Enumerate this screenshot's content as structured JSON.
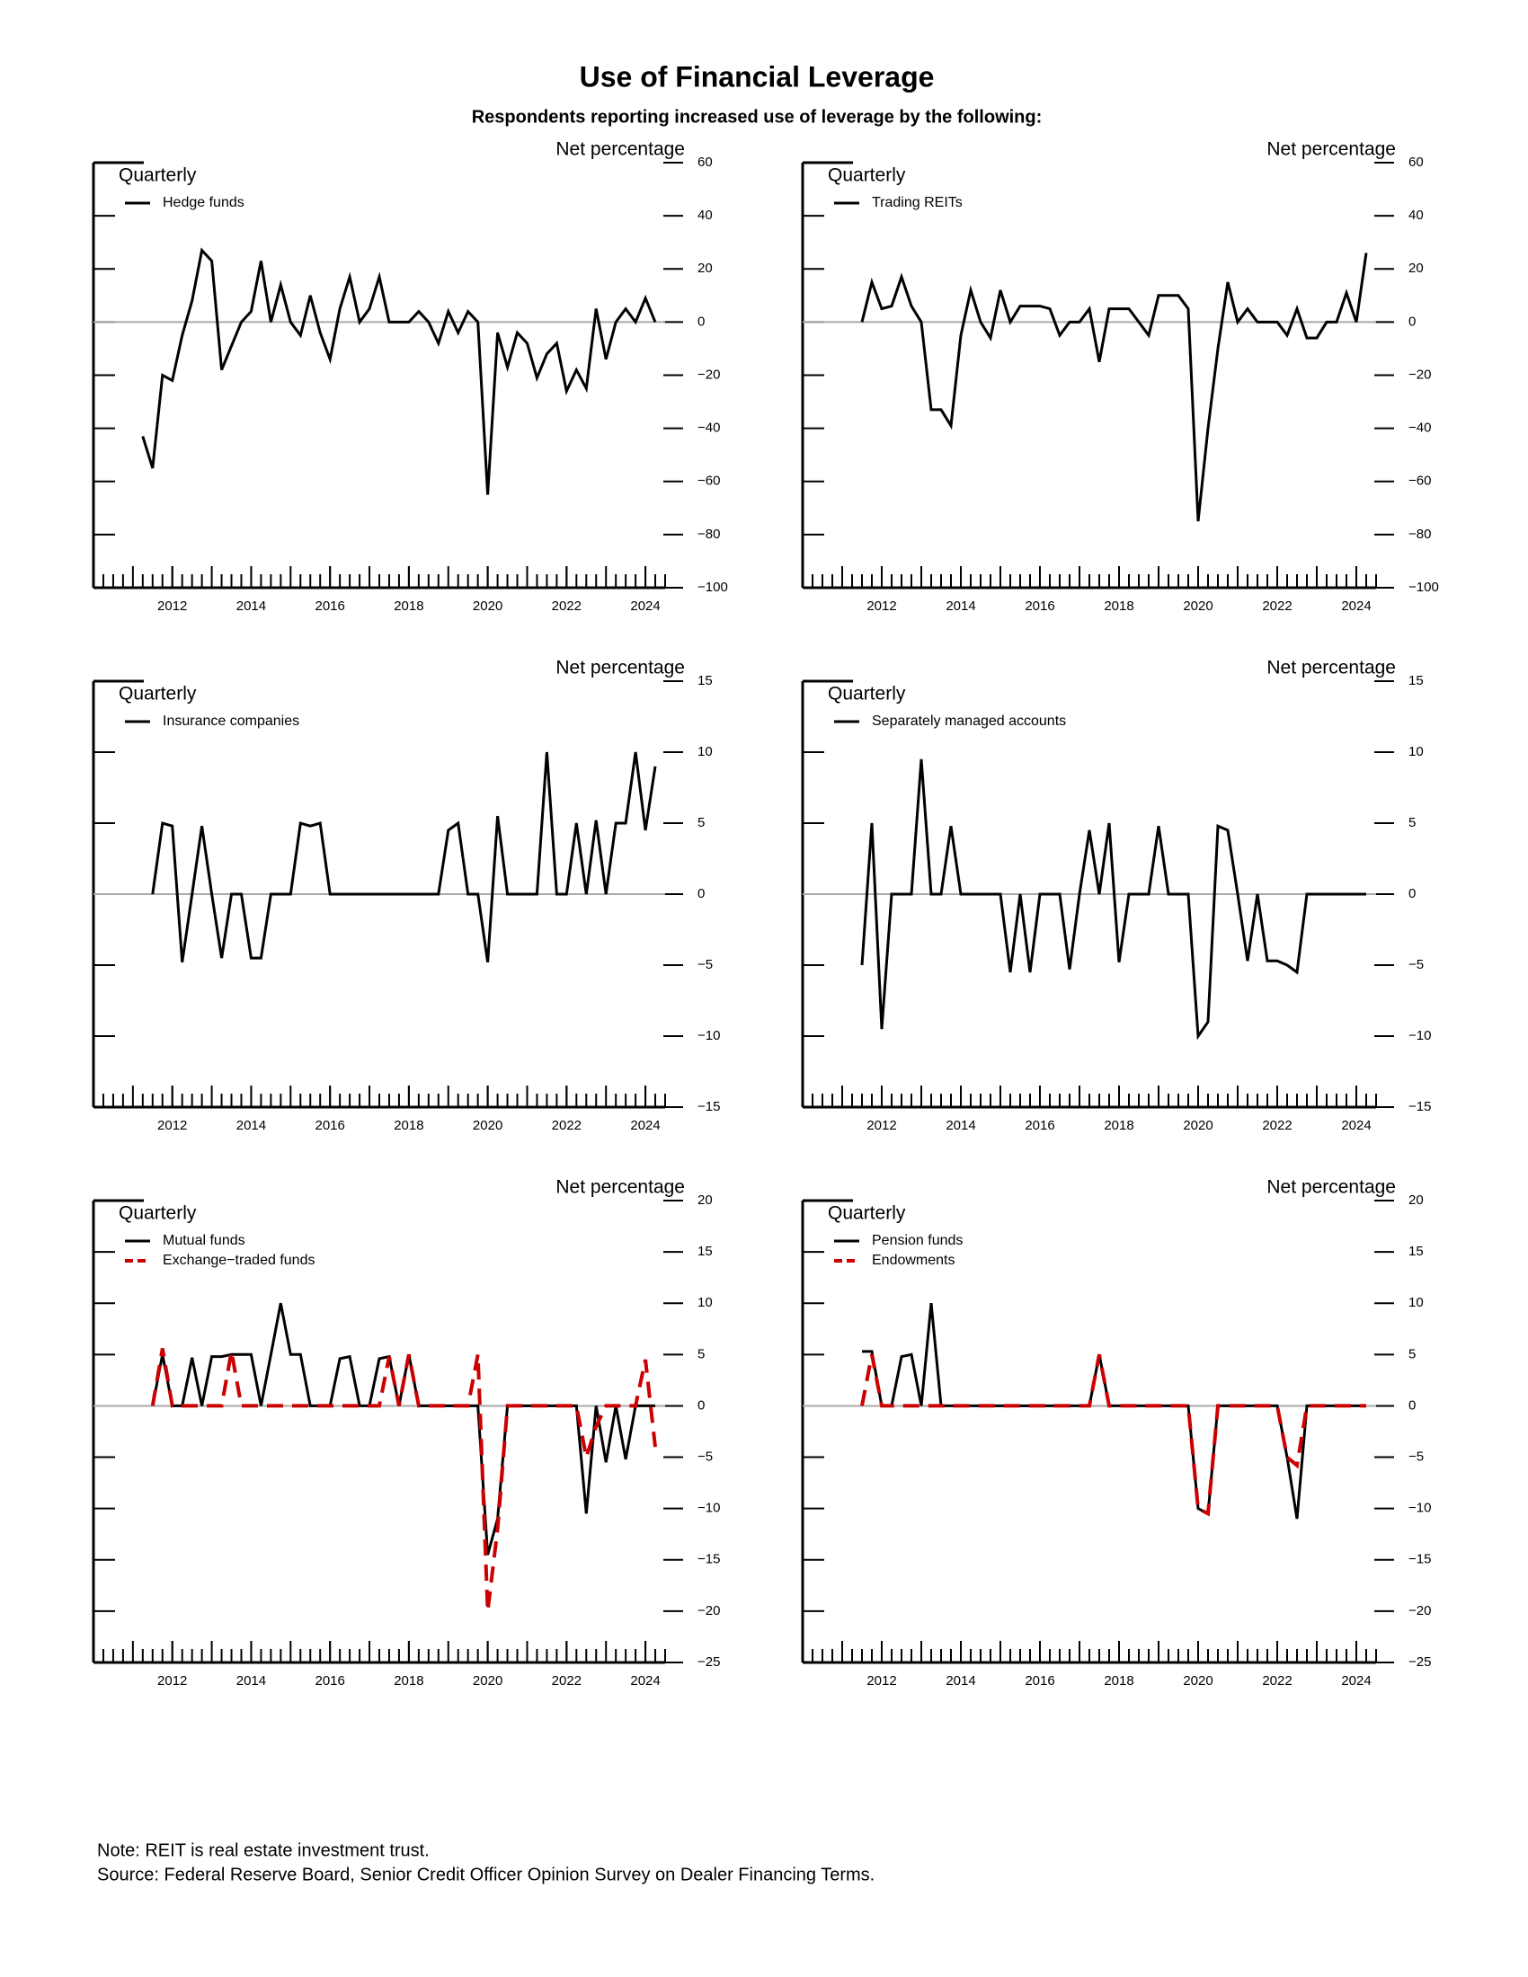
{
  "title": "Use of Financial Leverage",
  "subtitle": "Respondents reporting increased use of leverage by the following:",
  "notes": [
    "Note:  REIT is real estate investment trust.",
    "Source:  Federal Reserve Board, Senior Credit Officer Opinion Survey on Dealer Financing Terms."
  ],
  "chart_data": [
    {
      "type": "line",
      "y_label": "Net percentage",
      "frequency": "Quarterly",
      "legend": "upper left",
      "xlim": [
        2010,
        2024.5
      ],
      "xticks": [
        2012,
        2014,
        2016,
        2018,
        2020,
        2022,
        2024
      ],
      "ylim": [
        -100,
        60
      ],
      "yticks": [
        {
          "value": -100,
          "label": "−100"
        },
        {
          "value": -80,
          "label": "−80"
        },
        {
          "value": -60,
          "label": "−60"
        },
        {
          "value": -40,
          "label": "−40"
        },
        {
          "value": -20,
          "label": "−20"
        },
        0,
        20,
        40,
        60
      ],
      "x": [
        2011.25,
        2011.5,
        2011.75,
        2012,
        2012.25,
        2012.5,
        2012.75,
        2013,
        2013.25,
        2013.5,
        2013.75,
        2014,
        2014.25,
        2014.5,
        2014.75,
        2015,
        2015.25,
        2015.5,
        2015.75,
        2016,
        2016.25,
        2016.5,
        2016.75,
        2017,
        2017.25,
        2017.5,
        2017.75,
        2018,
        2018.25,
        2018.5,
        2018.75,
        2019,
        2019.25,
        2019.5,
        2019.75,
        2020,
        2020.25,
        2020.5,
        2020.75,
        2021,
        2021.25,
        2021.5,
        2021.75,
        2022,
        2022.25,
        2022.5,
        2022.75,
        2023,
        2023.25,
        2023.5,
        2023.75,
        2024,
        2024.25
      ],
      "series": [
        {
          "name": "Hedge funds",
          "color": "#000000",
          "dashed": false,
          "values": [
            -43,
            -55,
            -20,
            -22,
            -5,
            8,
            27,
            23,
            -18,
            -9,
            0,
            4,
            23,
            0,
            14,
            0,
            -5,
            10,
            -4,
            -14,
            5,
            17,
            0,
            5,
            17,
            0,
            0,
            0,
            4,
            0,
            -8,
            4,
            -4,
            4,
            0,
            -65,
            -4,
            -17,
            -4,
            -8,
            -21,
            -12,
            -8,
            -26,
            -18,
            -25,
            5,
            -14,
            0,
            5,
            0,
            9,
            0
          ]
        }
      ]
    },
    {
      "type": "line",
      "y_label": "Net percentage",
      "frequency": "Quarterly",
      "legend": "upper left",
      "xlim": [
        2010,
        2024.5
      ],
      "xticks": [
        2012,
        2014,
        2016,
        2018,
        2020,
        2022,
        2024
      ],
      "ylim": [
        -100,
        60
      ],
      "yticks": [
        {
          "value": -100,
          "label": "−100"
        },
        {
          "value": -80,
          "label": "−80"
        },
        {
          "value": -60,
          "label": "−60"
        },
        {
          "value": -40,
          "label": "−40"
        },
        {
          "value": -20,
          "label": "−20"
        },
        0,
        20,
        40,
        60
      ],
      "x": [
        2011.5,
        2011.75,
        2012,
        2012.25,
        2012.5,
        2012.75,
        2013,
        2013.25,
        2013.5,
        2013.75,
        2014,
        2014.25,
        2014.5,
        2014.75,
        2015,
        2015.25,
        2015.5,
        2015.75,
        2016,
        2016.25,
        2016.5,
        2016.75,
        2017,
        2017.25,
        2017.5,
        2017.75,
        2018,
        2018.25,
        2018.5,
        2018.75,
        2019,
        2019.25,
        2019.5,
        2019.75,
        2020,
        2020.25,
        2020.5,
        2020.75,
        2021,
        2021.25,
        2021.5,
        2021.75,
        2022,
        2022.25,
        2022.5,
        2022.75,
        2023,
        2023.25,
        2023.5,
        2023.75,
        2024,
        2024.25
      ],
      "series": [
        {
          "name": "Trading REITs",
          "color": "#000000",
          "dashed": false,
          "values": [
            0,
            15,
            5,
            6,
            17,
            6,
            0,
            -33,
            -33,
            -39,
            -5,
            12,
            0,
            -6,
            12,
            0,
            6,
            6,
            6,
            5,
            -5,
            0,
            0,
            5,
            -15,
            5,
            5,
            5,
            0,
            -5,
            10,
            10,
            10,
            5,
            -75,
            -40,
            -10,
            15,
            0,
            5,
            0,
            0,
            0,
            -5,
            5,
            -6,
            -6,
            0,
            0,
            11,
            0,
            26
          ]
        }
      ]
    },
    {
      "type": "line",
      "y_label": "Net percentage",
      "frequency": "Quarterly",
      "legend": "upper left",
      "xlim": [
        2010,
        2024.5
      ],
      "xticks": [
        2012,
        2014,
        2016,
        2018,
        2020,
        2022,
        2024
      ],
      "ylim": [
        -15,
        15
      ],
      "yticks": [
        {
          "value": -15,
          "label": "−15"
        },
        {
          "value": -10,
          "label": "−10"
        },
        {
          "value": -5,
          "label": "−5"
        },
        0,
        5,
        10,
        15
      ],
      "x": [
        2011.5,
        2011.75,
        2012,
        2012.25,
        2012.5,
        2012.75,
        2013,
        2013.25,
        2013.5,
        2013.75,
        2014,
        2014.25,
        2014.5,
        2014.75,
        2015,
        2015.25,
        2015.5,
        2015.75,
        2016,
        2016.25,
        2016.5,
        2016.75,
        2017,
        2017.25,
        2017.5,
        2017.75,
        2018,
        2018.25,
        2018.5,
        2018.75,
        2019,
        2019.25,
        2019.5,
        2019.75,
        2020,
        2020.25,
        2020.5,
        2020.75,
        2021,
        2021.25,
        2021.5,
        2021.75,
        2022,
        2022.25,
        2022.5,
        2022.75,
        2023,
        2023.25,
        2023.5,
        2023.75,
        2024,
        2024.25
      ],
      "series": [
        {
          "name": "Insurance companies",
          "color": "#000000",
          "dashed": false,
          "values": [
            0,
            5,
            4.8,
            -4.8,
            0,
            4.8,
            0,
            -4.5,
            0,
            0,
            -4.5,
            -4.5,
            0,
            0,
            0,
            5,
            4.8,
            5,
            0,
            0,
            0,
            0,
            0,
            0,
            0,
            0,
            0,
            0,
            0,
            0,
            4.5,
            5,
            0,
            0,
            -4.8,
            5.5,
            0,
            0,
            0,
            0,
            10,
            0,
            0,
            5,
            0,
            5.2,
            0,
            5,
            5,
            10,
            4.5,
            9
          ]
        }
      ]
    },
    {
      "type": "line",
      "y_label": "Net percentage",
      "frequency": "Quarterly",
      "legend": "upper left",
      "xlim": [
        2010,
        2024.5
      ],
      "xticks": [
        2012,
        2014,
        2016,
        2018,
        2020,
        2022,
        2024
      ],
      "ylim": [
        -15,
        15
      ],
      "yticks": [
        {
          "value": -15,
          "label": "−15"
        },
        {
          "value": -10,
          "label": "−10"
        },
        {
          "value": -5,
          "label": "−5"
        },
        0,
        5,
        10,
        15
      ],
      "x": [
        2011.5,
        2011.75,
        2012,
        2012.25,
        2012.5,
        2012.75,
        2013,
        2013.25,
        2013.5,
        2013.75,
        2014,
        2014.25,
        2014.5,
        2014.75,
        2015,
        2015.25,
        2015.5,
        2015.75,
        2016,
        2016.25,
        2016.5,
        2016.75,
        2017,
        2017.25,
        2017.5,
        2017.75,
        2018,
        2018.25,
        2018.5,
        2018.75,
        2019,
        2019.25,
        2019.5,
        2019.75,
        2020,
        2020.25,
        2020.5,
        2020.75,
        2021,
        2021.25,
        2021.5,
        2021.75,
        2022,
        2022.25,
        2022.5,
        2022.75,
        2023,
        2023.25,
        2023.5,
        2023.75,
        2024,
        2024.25
      ],
      "series": [
        {
          "name": "Separately managed accounts",
          "color": "#000000",
          "dashed": false,
          "values": [
            -5,
            5,
            -9.5,
            0,
            0,
            0,
            9.5,
            0,
            0,
            4.8,
            0,
            0,
            0,
            0,
            0,
            -5.5,
            0,
            -5.5,
            0,
            0,
            0,
            -5.3,
            0,
            4.5,
            0,
            5,
            -4.8,
            0,
            0,
            0,
            4.8,
            0,
            0,
            0,
            -10,
            -9,
            4.8,
            4.5,
            0,
            -4.7,
            0,
            -4.7,
            -4.7,
            -5,
            -5.5,
            0,
            0,
            0,
            0,
            0,
            0,
            0
          ]
        }
      ]
    },
    {
      "type": "line",
      "y_label": "Net percentage",
      "frequency": "Quarterly",
      "legend": "upper left",
      "xlim": [
        2010,
        2024.5
      ],
      "xticks": [
        2012,
        2014,
        2016,
        2018,
        2020,
        2022,
        2024
      ],
      "ylim": [
        -25,
        20
      ],
      "yticks": [
        {
          "value": -25,
          "label": "−25"
        },
        {
          "value": -20,
          "label": "−20"
        },
        {
          "value": -15,
          "label": "−15"
        },
        {
          "value": -10,
          "label": "−10"
        },
        {
          "value": -5,
          "label": "−5"
        },
        0,
        5,
        10,
        15,
        20
      ],
      "x": [
        2011.5,
        2011.75,
        2012,
        2012.25,
        2012.5,
        2012.75,
        2013,
        2013.25,
        2013.5,
        2013.75,
        2014,
        2014.25,
        2014.5,
        2014.75,
        2015,
        2015.25,
        2015.5,
        2015.75,
        2016,
        2016.25,
        2016.5,
        2016.75,
        2017,
        2017.25,
        2017.5,
        2017.75,
        2018,
        2018.25,
        2018.5,
        2018.75,
        2019,
        2019.25,
        2019.5,
        2019.75,
        2020,
        2020.25,
        2020.5,
        2020.75,
        2021,
        2021.25,
        2021.5,
        2021.75,
        2022,
        2022.25,
        2022.5,
        2022.75,
        2023,
        2023.25,
        2023.5,
        2023.75,
        2024,
        2024.25
      ],
      "series": [
        {
          "name": "Mutual funds",
          "color": "#000000",
          "dashed": false,
          "values": [
            0,
            5,
            0,
            0,
            4.7,
            0,
            4.8,
            4.8,
            5,
            5,
            5,
            0,
            5,
            10,
            5,
            5,
            0,
            0,
            0,
            4.6,
            4.8,
            0,
            0,
            4.6,
            4.8,
            0,
            5,
            0,
            0,
            0,
            0,
            0,
            0,
            0,
            -14.5,
            -11,
            0,
            0,
            0,
            0,
            0,
            0,
            0,
            0,
            -10.5,
            0,
            -5.5,
            0,
            -5.2,
            0,
            0,
            0
          ]
        },
        {
          "name": "Exchange−traded funds",
          "color": "#cc0000",
          "dashed": true,
          "values": [
            0,
            5.6,
            0,
            0,
            0,
            0,
            0,
            0,
            5.3,
            0,
            0,
            0,
            0,
            0,
            0,
            0,
            0,
            0,
            0,
            0,
            0,
            0,
            0,
            0,
            4.8,
            0,
            5,
            0,
            0,
            0,
            0,
            0,
            0,
            5,
            -20,
            -12,
            0,
            0,
            0,
            0,
            0,
            0,
            0,
            0,
            -5,
            -2,
            0,
            0,
            0,
            0,
            4.5,
            -4
          ]
        }
      ]
    },
    {
      "type": "line",
      "y_label": "Net percentage",
      "frequency": "Quarterly",
      "legend": "upper left",
      "xlim": [
        2010,
        2024.5
      ],
      "xticks": [
        2012,
        2014,
        2016,
        2018,
        2020,
        2022,
        2024
      ],
      "ylim": [
        -25,
        20
      ],
      "yticks": [
        {
          "value": -25,
          "label": "−25"
        },
        {
          "value": -20,
          "label": "−20"
        },
        {
          "value": -15,
          "label": "−15"
        },
        {
          "value": -10,
          "label": "−10"
        },
        {
          "value": -5,
          "label": "−5"
        },
        0,
        5,
        10,
        15,
        20
      ],
      "x": [
        2011.5,
        2011.75,
        2012,
        2012.25,
        2012.5,
        2012.75,
        2013,
        2013.25,
        2013.5,
        2013.75,
        2014,
        2014.25,
        2014.5,
        2014.75,
        2015,
        2015.25,
        2015.5,
        2015.75,
        2016,
        2016.25,
        2016.5,
        2016.75,
        2017,
        2017.25,
        2017.5,
        2017.75,
        2018,
        2018.25,
        2018.5,
        2018.75,
        2019,
        2019.25,
        2019.5,
        2019.75,
        2020,
        2020.25,
        2020.5,
        2020.75,
        2021,
        2021.25,
        2021.5,
        2021.75,
        2022,
        2022.25,
        2022.5,
        2022.75,
        2023,
        2023.25,
        2023.5,
        2023.75,
        2024,
        2024.25
      ],
      "series": [
        {
          "name": "Pension funds",
          "color": "#000000",
          "dashed": false,
          "values": [
            5.3,
            5.3,
            0,
            0,
            4.8,
            5,
            0,
            10,
            0,
            0,
            0,
            0,
            0,
            0,
            0,
            0,
            0,
            0,
            0,
            0,
            0,
            0,
            0,
            0,
            5,
            0,
            0,
            0,
            0,
            0,
            0,
            0,
            0,
            0,
            -10,
            -10.5,
            0,
            0,
            0,
            0,
            0,
            0,
            0,
            -5,
            -11,
            0,
            0,
            0,
            0,
            0,
            0,
            0
          ]
        },
        {
          "name": "Endowments",
          "color": "#cc0000",
          "dashed": true,
          "values": [
            0,
            5,
            0,
            0,
            0,
            0,
            0,
            0,
            0,
            0,
            0,
            0,
            0,
            0,
            0,
            0,
            0,
            0,
            0,
            0,
            0,
            0,
            0,
            0,
            5,
            0,
            0,
            0,
            0,
            0,
            0,
            0,
            0,
            0,
            -10,
            -10.5,
            0,
            0,
            0,
            0,
            0,
            0,
            0,
            -5,
            -5.8,
            0,
            0,
            0,
            0,
            0,
            0,
            0
          ]
        }
      ]
    }
  ]
}
